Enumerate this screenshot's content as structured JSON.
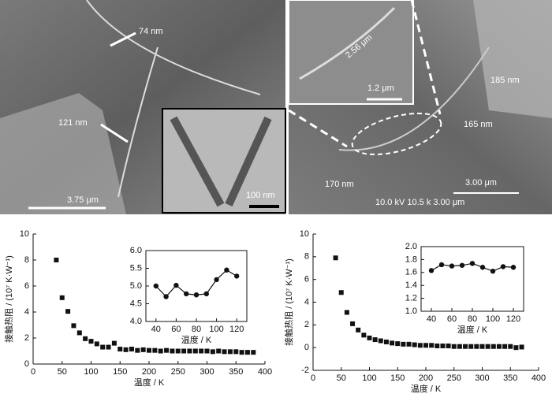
{
  "images": [
    {
      "labels": [
        "74 nm",
        "121 nm",
        "3.75 μm",
        "100 nm"
      ]
    },
    {
      "labels": [
        "2.56 μm",
        "1.2 μm",
        "185 nm",
        "165 nm",
        "170 nm",
        "3.00 μm",
        "10.0 kV 10.5 k 3.00 μm"
      ]
    }
  ],
  "chart_data": [
    {
      "type": "scatter",
      "xlabel": "温度 / K",
      "ylabel": "接触热阻 / (10⁷ K·W⁻¹)",
      "color": "#111111",
      "x": [
        40,
        50,
        60,
        70,
        80,
        90,
        100,
        110,
        120,
        130,
        140,
        150,
        160,
        170,
        180,
        190,
        200,
        210,
        220,
        230,
        240,
        250,
        260,
        270,
        280,
        290,
        300,
        310,
        320,
        330,
        340,
        350,
        360,
        370,
        380
      ],
      "values": [
        8.0,
        5.1,
        4.05,
        2.95,
        2.4,
        1.95,
        1.75,
        1.55,
        1.3,
        1.3,
        1.6,
        1.15,
        1.1,
        1.15,
        1.05,
        1.1,
        1.05,
        1.05,
        1.0,
        1.05,
        1.0,
        1.0,
        1.0,
        1.0,
        1.0,
        1.0,
        1.0,
        0.95,
        1.0,
        0.95,
        0.95,
        0.95,
        0.9,
        0.9,
        0.9
      ],
      "xlim": [
        0,
        400
      ],
      "xticks": [
        0,
        50,
        100,
        150,
        200,
        250,
        300,
        350,
        400
      ],
      "ylim": [
        0,
        10
      ],
      "yticks": [
        0,
        2,
        4,
        6,
        8,
        10
      ]
    },
    {
      "type": "line",
      "xlabel": "温度 / K",
      "color": "#111111",
      "x": [
        40,
        50,
        60,
        70,
        80,
        90,
        100,
        110,
        120
      ],
      "values": [
        5.0,
        4.7,
        5.02,
        4.78,
        4.75,
        4.78,
        5.18,
        5.45,
        5.28
      ],
      "xlim": [
        30,
        130
      ],
      "xticks": [
        40,
        60,
        80,
        100,
        120
      ],
      "ylim": [
        4,
        6
      ],
      "yticks": [
        {
          "value": 4,
          "label": "4.0"
        },
        4.5,
        {
          "value": 5,
          "label": "5.0"
        },
        5.5,
        {
          "value": 6,
          "label": "6.0"
        }
      ]
    },
    {
      "type": "scatter",
      "xlabel": "温度 / K",
      "ylabel": "接触热阻 / (10⁷ K·W⁻¹)",
      "color": "#111111",
      "x": [
        40,
        50,
        60,
        70,
        80,
        90,
        100,
        110,
        120,
        130,
        140,
        150,
        160,
        170,
        180,
        190,
        200,
        210,
        220,
        230,
        240,
        250,
        260,
        270,
        280,
        290,
        300,
        310,
        320,
        330,
        340,
        350,
        360,
        370
      ],
      "values": [
        7.9,
        4.85,
        3.1,
        2.1,
        1.55,
        1.1,
        0.85,
        0.7,
        0.6,
        0.5,
        0.4,
        0.35,
        0.3,
        0.3,
        0.25,
        0.2,
        0.2,
        0.2,
        0.15,
        0.15,
        0.15,
        0.1,
        0.1,
        0.1,
        0.1,
        0.1,
        0.1,
        0.1,
        0.1,
        0.1,
        0.1,
        0.1,
        0.0,
        0.05
      ],
      "xlim": [
        0,
        400
      ],
      "xticks": [
        0,
        50,
        100,
        150,
        200,
        250,
        300,
        350,
        400
      ],
      "ylim": [
        -2,
        10
      ],
      "yticks": [
        -2,
        0,
        2,
        4,
        6,
        8,
        10
      ]
    },
    {
      "type": "line",
      "xlabel": "温度 / K",
      "color": "#111111",
      "x": [
        40,
        50,
        60,
        70,
        80,
        90,
        100,
        110,
        120
      ],
      "values": [
        1.63,
        1.72,
        1.7,
        1.71,
        1.74,
        1.68,
        1.62,
        1.69,
        1.68
      ],
      "xlim": [
        30,
        130
      ],
      "xticks": [
        40,
        60,
        80,
        100,
        120
      ],
      "ylim": [
        1,
        2
      ],
      "yticks": [
        {
          "value": 1,
          "label": "1.0"
        },
        1.2,
        1.4,
        1.6,
        1.8,
        {
          "value": 2,
          "label": "2.0"
        }
      ]
    }
  ]
}
